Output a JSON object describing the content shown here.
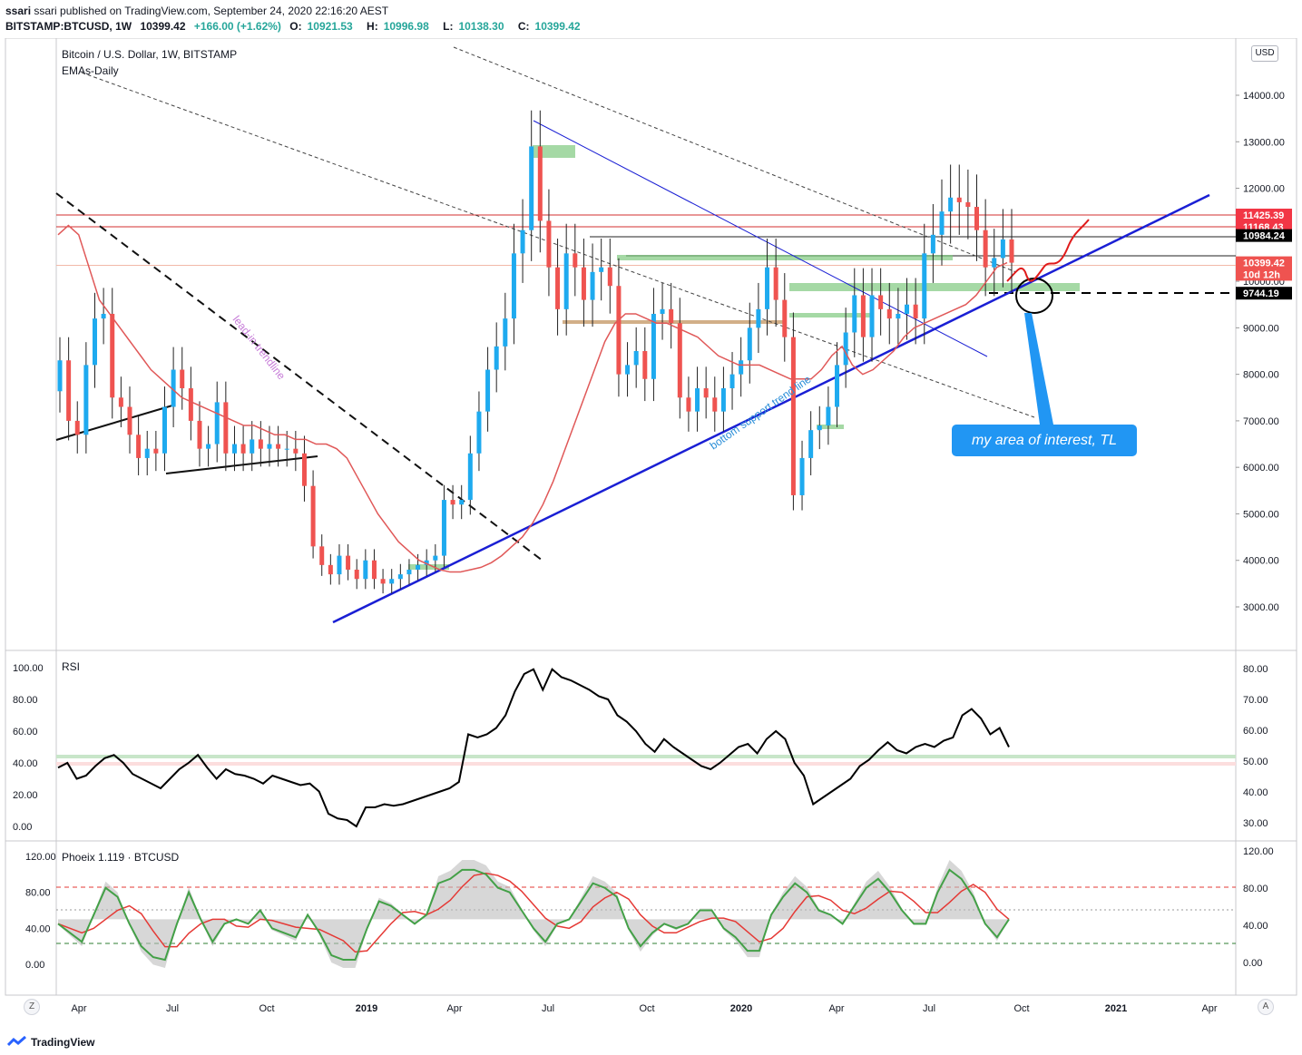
{
  "header": {
    "published": "ssari published on TradingView.com, September 24, 2020 22:16:20 AEST",
    "symbol": "BITSTAMP:BTCUSD, 1W",
    "last": "10399.42",
    "change": "+166.00 (+1.62%)",
    "open_label": "O:",
    "open": "10921.53",
    "high_label": "H:",
    "high": "10996.98",
    "low_label": "L:",
    "low": "10138.30",
    "close_label": "C:",
    "close": "10399.42"
  },
  "main_pane": {
    "title": "Bitcoin / U.S. Dollar, 1W, BITSTAMP",
    "indicator": "EMAs-Daily",
    "currency_button": "USD",
    "annotations": {
      "lead_in": "lead-in trendline",
      "support": "bottom support trend line",
      "callout": "my area of interest, TL"
    },
    "price_tags": [
      {
        "label": "11425.39",
        "value": 11425.39,
        "color": "#f23645"
      },
      {
        "label": "11168.43",
        "value": 11168.43,
        "color": "#f23645"
      },
      {
        "label": "10984.24",
        "value": 10984.24,
        "color": "#000000"
      },
      {
        "label": "10399.42",
        "value": 10399.42,
        "color": "#ef5350"
      },
      {
        "label": "10d 12h",
        "value": 10150,
        "color": "#ef5350"
      },
      {
        "label": "9744.19",
        "value": 9744.19,
        "color": "#000000"
      }
    ]
  },
  "rsi_pane": {
    "title": "RSI"
  },
  "phoeix_pane": {
    "title": "Phoeix 1.119 · BTCUSD"
  },
  "footer": {
    "brand": "TradingView",
    "z_button": "Z",
    "a_button": "A"
  },
  "chart_data": [
    {
      "type": "candlestick",
      "title": "Bitcoin / U.S. Dollar, 1W, BITSTAMP",
      "ylabel": "USD",
      "ylim": [
        2200,
        15500
      ],
      "y_ticks": [
        3000,
        4000,
        5000,
        6000,
        7000,
        8000,
        9000,
        10000,
        11000,
        12000,
        13000,
        14000
      ],
      "x_tick_labels": [
        "Apr",
        "Jul",
        "Oct",
        "2019",
        "Apr",
        "Jul",
        "Oct",
        "2020",
        "Apr",
        "Jul",
        "Oct",
        "2021",
        "Apr"
      ],
      "series": [
        {
          "name": "BTCUSD weekly close",
          "values": [
            8300,
            7000,
            6700,
            8200,
            9200,
            9300,
            7500,
            7300,
            6700,
            6200,
            6400,
            6300,
            7300,
            8100,
            7700,
            7000,
            6400,
            6500,
            7400,
            6300,
            6500,
            6300,
            6600,
            6400,
            6500,
            6400,
            6400,
            6300,
            5600,
            4300,
            3900,
            3700,
            4100,
            3800,
            3600,
            4000,
            3600,
            3500,
            3600,
            3700,
            3800,
            3900,
            4000,
            4100,
            5300,
            5200,
            5300,
            6300,
            7200,
            8100,
            8600,
            9200,
            10600,
            11100,
            12900,
            11300,
            10300,
            9400,
            10600,
            10300,
            9600,
            10200,
            10300,
            9900,
            8000,
            8200,
            8500,
            7900,
            9300,
            9400,
            9100,
            7500,
            7200,
            7700,
            7500,
            7200,
            7700,
            8000,
            8300,
            9000,
            9400,
            10300,
            9600,
            8800,
            5400,
            6200,
            6800,
            6900,
            7300,
            8200,
            8900,
            9700,
            8800,
            9700,
            9400,
            9200,
            9300,
            9500,
            9200,
            10600,
            11000,
            11500,
            11800,
            11700,
            11600,
            11100,
            10300,
            10500,
            10900,
            10400
          ]
        },
        {
          "name": "EMA",
          "values": [
            11000,
            11200,
            11000,
            10300,
            9600,
            9300,
            9000,
            8700,
            8400,
            8100,
            7900,
            7700,
            7500,
            7400,
            7300,
            7200,
            7100,
            7000,
            6900,
            6900,
            6800,
            6700,
            6700,
            6600,
            6600,
            6500,
            6500,
            6400,
            6200,
            5800,
            5400,
            5000,
            4700,
            4400,
            4200,
            4000,
            3900,
            3800,
            3750,
            3750,
            3800,
            3850,
            3950,
            4100,
            4300,
            4500,
            4800,
            5200,
            5700,
            6300,
            6900,
            7500,
            8100,
            8700,
            9100,
            9300,
            9300,
            9200,
            9100,
            9100,
            9000,
            8900,
            8800,
            8600,
            8400,
            8300,
            8200,
            8200,
            8200,
            8100,
            8000,
            7900,
            7900,
            7900,
            8100,
            8400,
            8600,
            8200,
            8000,
            8100,
            8300,
            8500,
            8800,
            9000,
            9100,
            9200,
            9300,
            9400,
            9500,
            9700,
            10000,
            10300,
            10400
          ]
        },
        {
          "name": "RSI",
          "values": [
            37,
            40,
            30,
            32,
            38,
            43,
            45,
            40,
            33,
            30,
            27,
            24,
            30,
            36,
            40,
            45,
            37,
            30,
            36,
            33,
            32,
            30,
            27,
            32,
            30,
            28,
            26,
            27,
            22,
            8,
            5,
            4,
            0,
            12,
            12,
            14,
            13,
            14,
            16,
            18,
            20,
            22,
            24,
            28,
            58,
            56,
            58,
            62,
            70,
            85,
            96,
            99,
            86,
            99,
            94,
            92,
            89,
            86,
            82,
            80,
            70,
            66,
            60,
            52,
            47,
            55,
            50,
            46,
            42,
            38,
            36,
            40,
            45,
            50,
            52,
            46,
            55,
            60,
            55,
            40,
            32,
            14,
            18,
            22,
            26,
            30,
            38,
            42,
            48,
            53,
            48,
            46,
            50,
            52,
            50,
            54,
            56,
            70,
            74,
            68,
            58,
            62,
            50
          ]
        },
        {
          "name": "Phoeix",
          "values": [
            45,
            35,
            25,
            55,
            85,
            75,
            45,
            20,
            8,
            5,
            45,
            80,
            50,
            25,
            45,
            50,
            45,
            60,
            40,
            35,
            30,
            55,
            35,
            10,
            5,
            5,
            40,
            70,
            65,
            55,
            45,
            55,
            90,
            95,
            105,
            105,
            100,
            85,
            80,
            60,
            40,
            25,
            45,
            50,
            70,
            90,
            85,
            75,
            40,
            20,
            35,
            45,
            40,
            45,
            60,
            60,
            40,
            30,
            15,
            15,
            55,
            75,
            90,
            80,
            60,
            55,
            45,
            65,
            85,
            95,
            80,
            60,
            45,
            45,
            80,
            105,
            95,
            75,
            45,
            30,
            50
          ]
        }
      ]
    },
    {
      "type": "line",
      "title": "RSI",
      "left_ylim": [
        0,
        100
      ],
      "left_ticks": [
        0,
        20,
        40,
        60,
        80,
        100
      ],
      "right_ticks": [
        30,
        40,
        50,
        60,
        70,
        80
      ]
    },
    {
      "type": "area",
      "title": "Phoeix 1.119 · BTCUSD",
      "left_ticks": [
        0,
        40,
        80,
        120
      ],
      "right_ticks": [
        0,
        40,
        80,
        120
      ]
    }
  ],
  "colors": {
    "up": "#26a69a",
    "up_candle": "#1eaaef",
    "down": "#ef5350",
    "trend": "#1a1fd4",
    "ema": "#e05858",
    "box": "#7fc97f"
  }
}
